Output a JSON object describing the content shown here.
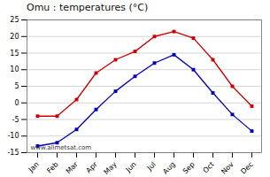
{
  "chart_data": {
    "type": "line",
    "title": "Omu : temperatures (°C)",
    "categories": [
      "Jan",
      "Feb",
      "Mar",
      "Apr",
      "May",
      "Jun",
      "Jul",
      "Aug",
      "Sep",
      "Oct",
      "Nov",
      "Dec"
    ],
    "series": [
      {
        "color": "#cc0000",
        "marker": "square",
        "line_style": "solid",
        "values": [
          -4,
          -4,
          1,
          9,
          13,
          15.5,
          20,
          21.5,
          19.5,
          13,
          5,
          -1
        ]
      },
      {
        "color": "#0000bb",
        "marker": "square",
        "line_style": "solid",
        "values": [
          -13,
          -12,
          -8,
          -2,
          3.5,
          8,
          12,
          14.5,
          10,
          3,
          -3.5,
          -8.5
        ]
      }
    ],
    "ylim": [
      -15,
      25
    ],
    "yticks": [
      -15,
      -10,
      -5,
      0,
      5,
      10,
      15,
      20,
      25
    ],
    "grid": true,
    "annotation": "www.allmetsat.com"
  }
}
